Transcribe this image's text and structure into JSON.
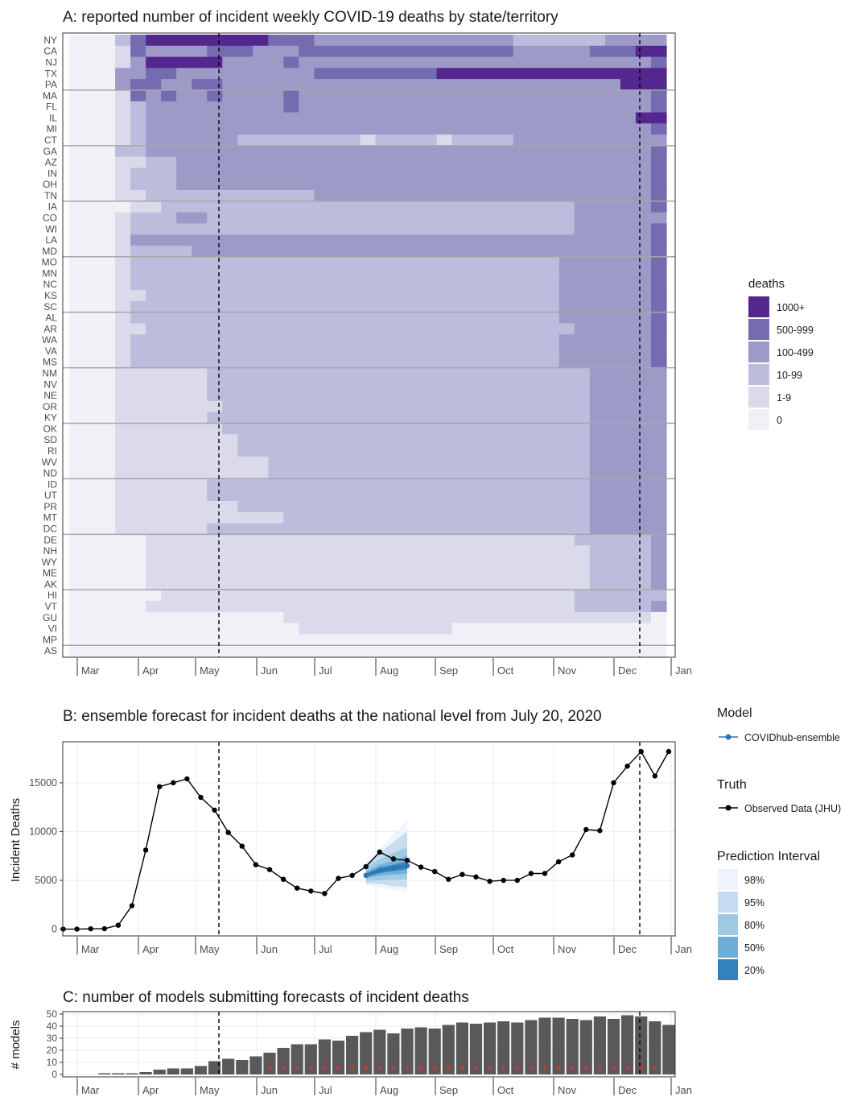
{
  "legend_heat": {
    "title": "deaths",
    "items": [
      {
        "label": "1000+",
        "color": "#54278f"
      },
      {
        "label": "500-999",
        "color": "#756bb1"
      },
      {
        "label": "100-499",
        "color": "#9e9ac8"
      },
      {
        "label": "10-99",
        "color": "#bcbddc"
      },
      {
        "label": "1-9",
        "color": "#dadaeb"
      },
      {
        "label": "0",
        "color": "#f2f0f7"
      }
    ]
  },
  "legend_forecast": {
    "model_title": "Model",
    "model_label": "COVIDhub-ensemble",
    "model_color": "#2b75b8",
    "truth_title": "Truth",
    "truth_label": "Observed Data (JHU)",
    "truth_color": "#000000",
    "pi_title": "Prediction Interval",
    "pi_items": [
      {
        "label": "98%",
        "color": "#eff3ff"
      },
      {
        "label": "95%",
        "color": "#c6dbef"
      },
      {
        "label": "80%",
        "color": "#9ecae1"
      },
      {
        "label": "50%",
        "color": "#6baed6"
      },
      {
        "label": "20%",
        "color": "#3182bd"
      }
    ]
  },
  "chart_data": [
    {
      "type": "heatmap",
      "title": "A: reported number of incident weekly COVID-19 deaths by state/territory",
      "xlabel": "",
      "ylabel": "",
      "x_tick_labels": [
        "Mar",
        "Apr",
        "May",
        "Jun",
        "Jul",
        "Aug",
        "Sep",
        "Oct",
        "Nov",
        "Dec",
        "Jan"
      ],
      "rows": [
        "NY",
        "CA",
        "NJ",
        "TX",
        "PA",
        "MA",
        "FL",
        "IL",
        "MI",
        "CT",
        "GA",
        "AZ",
        "IN",
        "OH",
        "TN",
        "IA",
        "CO",
        "WI",
        "LA",
        "MD",
        "MO",
        "MN",
        "NC",
        "KS",
        "SC",
        "AL",
        "AR",
        "WA",
        "VA",
        "MS",
        "NM",
        "NV",
        "NE",
        "OR",
        "KY",
        "OK",
        "SD",
        "RI",
        "WV",
        "ND",
        "ID",
        "UT",
        "PR",
        "MT",
        "DC",
        "DE",
        "NH",
        "WY",
        "ME",
        "AK",
        "HI",
        "VT",
        "GU",
        "VI",
        "MP",
        "AS"
      ],
      "categories": [
        "1000+",
        "500-999",
        "100-499",
        "10-99",
        "1-9",
        "0"
      ],
      "row_group_size": 5,
      "vertical_lines": [
        "May",
        "Dec"
      ],
      "cell_category_index": [
        "555310000000011122222222222223333332222",
        "555412222111222111111111111112222211100",
        "555420000022221222222222222222222222221",
        "555221122222222211111111000000000000000",
        "555211221122222222222222222222222222000",
        "555412122122221222222222222222222222221",
        "555432222222221222222222222222222222221",
        "555432222222222222222222222222222222200",
        "555432222222222222222222222222222222221",
        "555432222223333333343333433332222222222",
        "555332222222222222222222222222222222221",
        "555443322222222222222222222222222222221",
        "555433322222222222222222222222222222221",
        "555433322222222222222222222222222222221",
        "555443333333333322222222222222222222221",
        "555544333333333333333333333333333222221",
        "555433322333333333333333333333333222222",
        "555433333333333333333333333333333222221",
        "555422222222222222222222222222222222221",
        "555433332222222222222222222222222222221",
        "555433333333333333333333333333332222221",
        "555433333333333333333333333333332222221",
        "555433333333333333333333333333332222221",
        "555443333333333333333333333333332222221",
        "555433333333333333333333333333332222221",
        "555433333333333333333333333333332222221",
        "555443333333333333333333333333333222221",
        "555433333333333333333333333333332222221",
        "555433333333333333333333333333332222221",
        "555433333333333333333333333333332222221",
        "555444444333333333333333333333333322222",
        "555444444333333333333333333333333322222",
        "555444444333333333333333333333333322222",
        "555444444433333333333333333333333322222",
        "555444444333333333333333333333333322222",
        "555444444433333333333333333333333322222",
        "555444444443333333333333333333333322222",
        "555444444443333333333333333333333322222",
        "555444444444433333333333333333333322222",
        "555444444444433333333333333333333322222",
        "555444444333333333333333333333333322222",
        "555444444333333333333333333333333322222",
        "555444444443333333333333333333333322222",
        "555444444444443333333333333333333322222",
        "555444444333333333333333333333333322222",
        "555554444444444444444444444444444333332",
        "555554444444444444444444444444444433332",
        "555554444444444444444444444444444433332",
        "555554444444444444444444444444444433332",
        "555554444444444444444444444444444433332",
        "555555444444444444444444444444444333333",
        "555554444444444444444444444444444333332",
        "555555555555554444444444444444444444445",
        "555555555555555444444444455555555555555",
        "555555555555555555555555555555555555555",
        "555555555555555555555555555555555555555"
      ]
    },
    {
      "type": "line",
      "title": "B: ensemble forecast for incident deaths at the national level from July 20, 2020",
      "xlabel": "",
      "ylabel": "Incident Deaths",
      "x_tick_labels": [
        "Mar",
        "Apr",
        "May",
        "Jun",
        "Jul",
        "Aug",
        "Sep",
        "Oct",
        "Nov",
        "Dec",
        "Jan"
      ],
      "y_ticks": [
        0,
        5000,
        10000,
        15000
      ],
      "ylim": [
        -700,
        19200
      ],
      "vertical_lines": [
        "May",
        "Dec"
      ],
      "series": [
        {
          "name": "Observed Data (JHU)",
          "values": [
            0,
            0,
            30,
            40,
            400,
            2400,
            8100,
            14600,
            15000,
            15400,
            13500,
            12200,
            9900,
            8500,
            6600,
            6100,
            5100,
            4200,
            3900,
            3650,
            5200,
            5500,
            6400,
            7900,
            7200,
            7050,
            6350,
            5900,
            5100,
            5600,
            5350,
            4900,
            5000,
            5000,
            5700,
            5700,
            6900,
            7600,
            10200,
            10100,
            15000,
            16700,
            18200,
            15700,
            18200
          ]
        },
        {
          "name": "COVIDhub-ensemble",
          "start_week_index": 22,
          "values": [
            5500,
            6000,
            6250,
            6500
          ],
          "intervals": {
            "98%": {
              "lower": [
                4500,
                4300,
                4000,
                3800
              ],
              "upper": [
                6900,
                8200,
                9700,
                11200
              ]
            },
            "95%": {
              "lower": [
                4700,
                4600,
                4400,
                4300
              ],
              "upper": [
                6700,
                7800,
                8900,
                10000
              ]
            },
            "80%": {
              "lower": [
                4950,
                5000,
                5050,
                5100
              ],
              "upper": [
                6300,
                7200,
                7800,
                8400
              ]
            },
            "50%": {
              "lower": [
                5200,
                5500,
                5600,
                5700
              ],
              "upper": [
                5900,
                6600,
                7000,
                7500
              ]
            },
            "20%": {
              "lower": [
                5350,
                5750,
                5950,
                6150
              ],
              "upper": [
                5700,
                6300,
                6600,
                6900
              ]
            }
          }
        }
      ]
    },
    {
      "type": "bar",
      "title": "C: number of models submitting forecasts of incident deaths",
      "xlabel": "",
      "ylabel": "# models",
      "x_tick_labels": [
        "Mar",
        "Apr",
        "May",
        "Jun",
        "Jul",
        "Aug",
        "Sep",
        "Oct",
        "Nov",
        "Dec",
        "Jan"
      ],
      "y_ticks": [
        0,
        10,
        20,
        30,
        40,
        50
      ],
      "ylim": [
        -2,
        52
      ],
      "vertical_lines": [
        "May",
        "Dec"
      ],
      "values": [
        0,
        0,
        1,
        1,
        1,
        2,
        4,
        5,
        5,
        7,
        11,
        13,
        12,
        15,
        18,
        22,
        25,
        25,
        29,
        28,
        32,
        35,
        37,
        34,
        38,
        39,
        38,
        41,
        43,
        42,
        43,
        44,
        43,
        45,
        47,
        47,
        46,
        45,
        48,
        46,
        49,
        48,
        44,
        41
      ],
      "marker_values": [
        0,
        0,
        0,
        0,
        0,
        0,
        0,
        0,
        0,
        0,
        0,
        0,
        0,
        0,
        5,
        5,
        5,
        5,
        5,
        5,
        5,
        5,
        5,
        5,
        5,
        5,
        5,
        5,
        5,
        5,
        5,
        5,
        5,
        5,
        5,
        5,
        5,
        5,
        5,
        5,
        5,
        5,
        5,
        0
      ],
      "marker_color": "#e3342f"
    }
  ]
}
